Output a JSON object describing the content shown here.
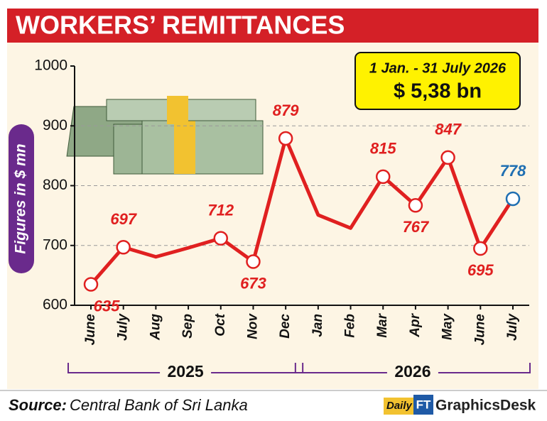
{
  "chart_data": {
    "type": "line",
    "title": "WORKERS’ REMITTANCES",
    "y_label": "Figures in $ mn",
    "annotation": {
      "period": "1 Jan. - 31 July 2026",
      "total": "$ 5,38 bn"
    },
    "categories": [
      "June",
      "July",
      "Aug",
      "Sep",
      "Oct",
      "Nov",
      "Dec",
      "Jan",
      "Feb",
      "Mar",
      "Apr",
      "May",
      "June",
      "July"
    ],
    "x_groups": [
      {
        "label": "2025",
        "span": 7
      },
      {
        "label": "2026",
        "span": 7
      }
    ],
    "values": [
      635,
      697,
      681,
      696,
      712,
      673,
      879,
      751,
      729,
      815,
      767,
      847,
      695,
      778
    ],
    "value_labels": [
      "635",
      "697",
      null,
      null,
      "712",
      "673",
      "879",
      null,
      null,
      "815",
      "767",
      "847",
      "695",
      "778"
    ],
    "color": "#e02020",
    "point_colors": [
      "#e02020",
      "#e02020",
      "#e02020",
      "#e02020",
      "#e02020",
      "#e02020",
      "#e02020",
      "#e02020",
      "#e02020",
      "#e02020",
      "#e02020",
      "#e02020",
      "#e02020",
      "#1f6fb2"
    ],
    "ylim": [
      600,
      1000
    ],
    "yticks": [
      600,
      700,
      800,
      900,
      1000
    ],
    "grid": true,
    "source_label": "Source:",
    "source": "Central Bank of Sri Lanka",
    "credit": {
      "daily": "Daily",
      "ft": "FT",
      "desk": "GraphicsDesk"
    }
  }
}
